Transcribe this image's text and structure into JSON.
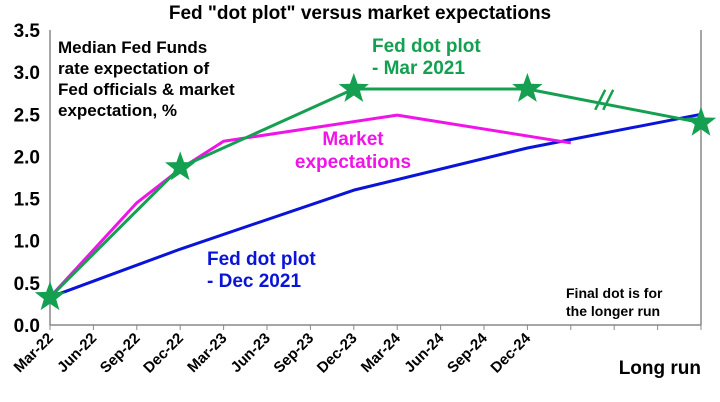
{
  "chart_data": {
    "type": "line",
    "title": "Fed \"dot plot\" versus market expectations",
    "categories": [
      "Mar-22",
      "Jun-22",
      "Sep-22",
      "Dec-22",
      "Mar-23",
      "Jun-23",
      "Sep-23",
      "Dec-23",
      "Mar-24",
      "Jun-24",
      "Sep-24",
      "Dec-24",
      "",
      "",
      "",
      "Long run"
    ],
    "ylim": [
      0,
      3.5
    ],
    "yticks": [
      "0.0",
      "0.5",
      "1.0",
      "1.5",
      "2.0",
      "2.5",
      "3.0",
      "3.5"
    ],
    "series": [
      {
        "name": "Fed dot plot - Dec 2021",
        "color": "#0a14d8",
        "points": [
          [
            0,
            0.33
          ],
          [
            3,
            0.9
          ],
          [
            7,
            1.6
          ],
          [
            11,
            2.1
          ],
          [
            15,
            2.5
          ]
        ]
      },
      {
        "name": "Market expectations",
        "color": "#f014e8",
        "points": [
          [
            0,
            0.33
          ],
          [
            2,
            1.45
          ],
          [
            3,
            1.85
          ],
          [
            4,
            2.18
          ],
          [
            8,
            2.49
          ],
          [
            12,
            2.16
          ]
        ]
      },
      {
        "name": "Fed dot plot - Mar 2021",
        "color": "#14a050",
        "points": [
          [
            0,
            0.33
          ],
          [
            3,
            1.87
          ],
          [
            7,
            2.8
          ],
          [
            11,
            2.8
          ],
          [
            15,
            2.4
          ]
        ],
        "markers": "star"
      }
    ],
    "annotations": {
      "ylabel_note": [
        "Median Fed Funds",
        "rate expectation of",
        "Fed officials & market",
        "expectation, %"
      ],
      "green_label": [
        "Fed dot plot",
        "- Mar 2021"
      ],
      "magenta_label": [
        "Market",
        "expectations"
      ],
      "blue_label": [
        "Fed dot plot",
        "- Dec 2021"
      ],
      "note": [
        "Final dot is for",
        "the longer run"
      ]
    }
  }
}
